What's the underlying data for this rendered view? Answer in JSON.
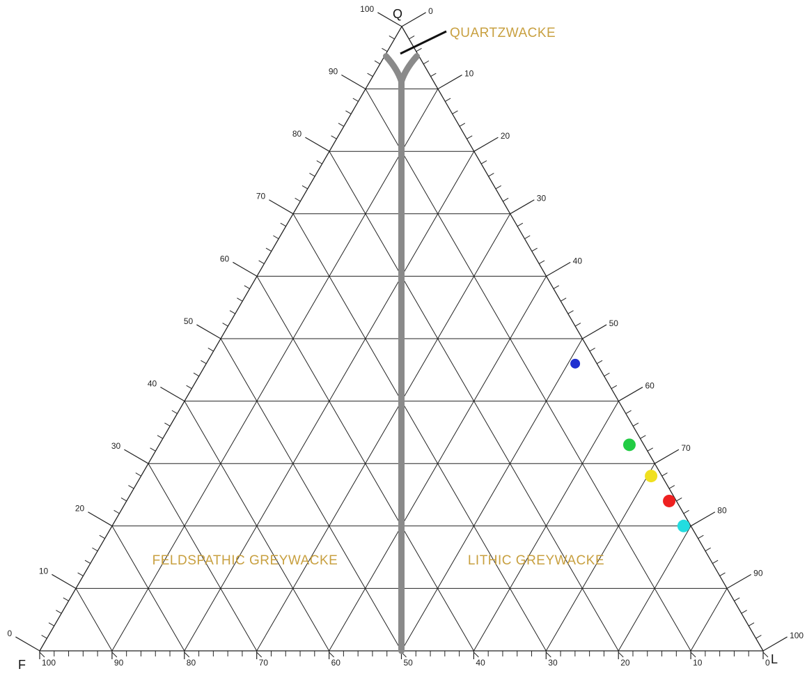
{
  "chart_data": {
    "type": "ternary",
    "title": "",
    "apices": {
      "top": "Q",
      "left": "F",
      "right": "L"
    },
    "axis_tick_labels": {
      "q_axis_left_edge": [
        "0",
        "10",
        "20",
        "30",
        "40",
        "50",
        "60",
        "70",
        "80",
        "90",
        "100"
      ],
      "l_axis_right_edge": [
        "0",
        "10",
        "20",
        "30",
        "40",
        "50",
        "60",
        "70",
        "80",
        "90",
        "100"
      ],
      "f_axis_bottom_edge": [
        "100",
        "90",
        "80",
        "70",
        "60",
        "50",
        "40",
        "30",
        "20",
        "10",
        "0"
      ]
    },
    "grid": true,
    "grid_step": 10,
    "fields": [
      {
        "label": "QUARTZWACKE",
        "color": "#c8a040"
      },
      {
        "label": "FELDSPATHIC GREYWACKE",
        "color": "#c8a040"
      },
      {
        "label": "LITHIC GREYWACKE",
        "color": "#c8a040"
      }
    ],
    "field_boundary": {
      "color": "#8a8a8a",
      "stem": {
        "f_equals_l": true,
        "q_from": 0,
        "q_to": 95
      },
      "fork_apex_q": 95
    },
    "points": [
      {
        "q": 46,
        "f": 3,
        "l": 51,
        "color": "#1f2fd0"
      },
      {
        "q": 33,
        "f": 2,
        "l": 65,
        "color": "#22cc44"
      },
      {
        "q": 28,
        "f": 1.5,
        "l": 70.5,
        "color": "#f0e020"
      },
      {
        "q": 24,
        "f": 1,
        "l": 75,
        "color": "#ee2020"
      },
      {
        "q": 20,
        "f": 1,
        "l": 79,
        "color": "#22dde0"
      }
    ]
  }
}
